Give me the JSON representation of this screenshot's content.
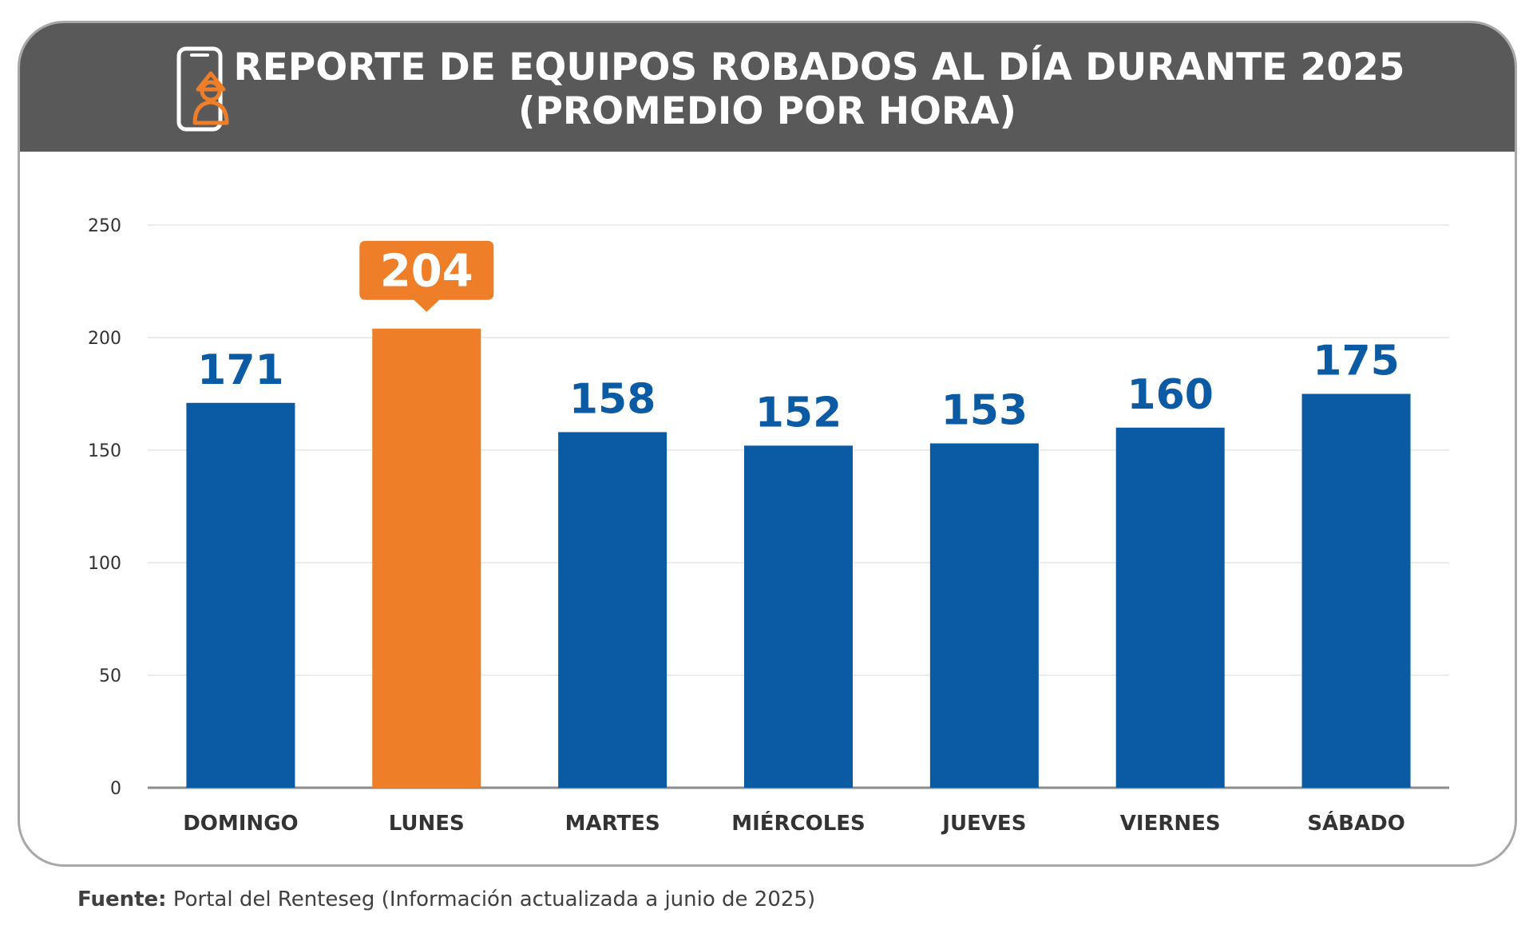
{
  "header": {
    "title_line1": "REPORTE DE EQUIPOS ROBADOS AL DÍA DURANTE 2025",
    "title_line2": "(PROMEDIO POR HORA)",
    "icon": "phone-thief-icon"
  },
  "footer": {
    "label": "Fuente:",
    "text": " Portal del Renteseg (Información actualizada a junio de 2025)"
  },
  "colors": {
    "bar": "#0a5aa4",
    "highlight": "#ee7e28",
    "value_label": "#0a5aa4",
    "header_bg": "#595959"
  },
  "chart_data": {
    "type": "bar",
    "title": "REPORTE DE EQUIPOS ROBADOS AL DÍA DURANTE 2025 (PROMEDIO POR HORA)",
    "categories": [
      "DOMINGO",
      "LUNES",
      "MARTES",
      "MIÉRCOLES",
      "JUEVES",
      "VIERNES",
      "SÁBADO"
    ],
    "values": [
      171,
      204,
      158,
      152,
      153,
      160,
      175
    ],
    "highlight_category": "LUNES",
    "ylim": [
      0,
      250
    ],
    "yticks": [
      0,
      50,
      100,
      150,
      200,
      250
    ],
    "xlabel": "",
    "ylabel": "",
    "grid": true,
    "legend": "none"
  }
}
